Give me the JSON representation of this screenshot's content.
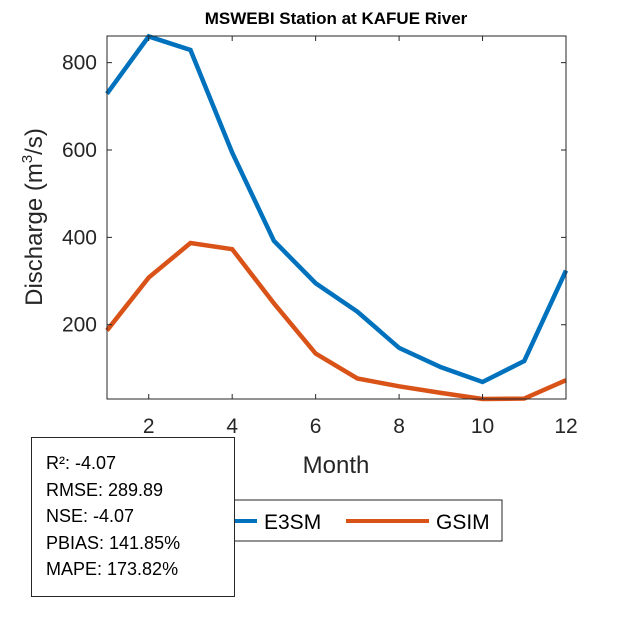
{
  "chart_data": {
    "type": "line",
    "title": "MSWEBI  Station at  KAFUE  River",
    "xlabel": "Month",
    "ylabel": "Discharge (m³/s)",
    "ylabel_parts": {
      "before": "Discharge (m",
      "sup": "3",
      "after": "/s)"
    },
    "x": [
      1,
      2,
      3,
      4,
      5,
      6,
      7,
      8,
      9,
      10,
      11,
      12
    ],
    "xlim": [
      1,
      12
    ],
    "ylim": [
      30,
      861
    ],
    "xticks": [
      2,
      4,
      6,
      8,
      10,
      12
    ],
    "xtick_labels": [
      "2",
      "4",
      "6",
      "8",
      "10",
      "12"
    ],
    "yticks": [
      200,
      400,
      600,
      800
    ],
    "ytick_labels": [
      "200",
      "400",
      "600",
      "800"
    ],
    "grid": false,
    "legend_position": "bottom-center (outside, horizontal)",
    "series": [
      {
        "name": "E3SM",
        "color": "#0072BD",
        "values": [
          729,
          860,
          829,
          594,
          392,
          295,
          230,
          147,
          103,
          69,
          117,
          324
        ]
      },
      {
        "name": "GSIM",
        "color": "#D95319",
        "values": [
          187,
          308,
          387,
          373,
          249,
          134,
          77,
          59,
          44,
          30,
          31,
          73
        ]
      }
    ]
  },
  "stats": [
    {
      "label": "R²",
      "value": "-4.07",
      "text": "R²: -4.07"
    },
    {
      "label": "RMSE",
      "value": "289.89",
      "text": "RMSE: 289.89"
    },
    {
      "label": "NSE",
      "value": "-4.07",
      "text": "NSE: -4.07"
    },
    {
      "label": "PBIAS",
      "value": "141.85%",
      "text": "PBIAS: 141.85%"
    },
    {
      "label": "MAPE",
      "value": "173.82%",
      "text": "MAPE: 173.82%"
    }
  ]
}
